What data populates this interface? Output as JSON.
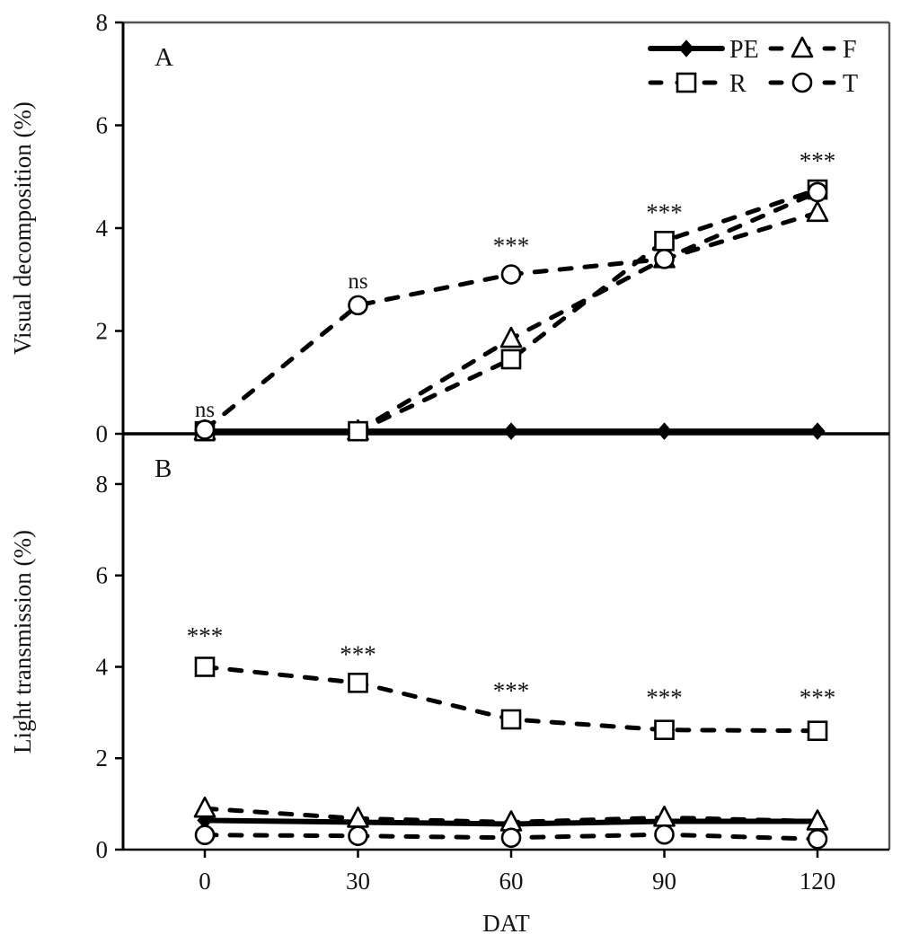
{
  "figure_title": "",
  "xlabel": "DAT",
  "colors": {
    "line": "#000000",
    "frame": "#555555",
    "text": "#141414",
    "marker_fill": "#ffffff"
  },
  "legend": {
    "order": [
      "PE",
      "F",
      "R",
      "T"
    ],
    "labels": {
      "PE": "PE",
      "F": "F",
      "R": "R",
      "T": "T"
    }
  },
  "chart_data": [
    {
      "type": "line",
      "panel": "A",
      "panel_label": "A",
      "title": "",
      "xlabel": "",
      "ylabel": "Visual decomposition (%)",
      "x": [
        0,
        30,
        60,
        90,
        120
      ],
      "x_tick_labels": [
        "0",
        "30",
        "60",
        "90",
        "120"
      ],
      "xlim": [
        0,
        120
      ],
      "ylim": [
        0,
        8
      ],
      "yticks": [
        0,
        2,
        4,
        6,
        8
      ],
      "grid": false,
      "legend_position": "top-right-inside",
      "series": [
        {
          "name": "PE",
          "marker": "diamond-filled",
          "line": "solid",
          "values": [
            0.05,
            0.05,
            0.05,
            0.05,
            0.05
          ]
        },
        {
          "name": "F",
          "marker": "triangle-open",
          "line": "dashed",
          "values": [
            0.05,
            0.05,
            1.85,
            3.4,
            4.3
          ]
        },
        {
          "name": "R",
          "marker": "square-open",
          "line": "dashed",
          "values": [
            0.05,
            0.05,
            1.45,
            3.75,
            4.75
          ]
        },
        {
          "name": "T",
          "marker": "circle-open",
          "line": "dashed",
          "values": [
            0.08,
            2.5,
            3.1,
            3.4,
            4.7
          ]
        }
      ],
      "annotations": [
        {
          "x": 0,
          "y": 0.33,
          "text": "ns"
        },
        {
          "x": 30,
          "y": 2.83,
          "text": "ns"
        },
        {
          "x": 60,
          "y": 3.5,
          "text": "***"
        },
        {
          "x": 90,
          "y": 4.15,
          "text": "***"
        },
        {
          "x": 120,
          "y": 5.15,
          "text": "***"
        }
      ]
    },
    {
      "type": "line",
      "panel": "B",
      "panel_label": "B",
      "title": "",
      "xlabel": "DAT",
      "ylabel": "Light transmission (%)",
      "x": [
        0,
        30,
        60,
        90,
        120
      ],
      "x_tick_labels": [
        "0",
        "30",
        "60",
        "90",
        "120"
      ],
      "xlim": [
        0,
        120
      ],
      "ylim": [
        0,
        9.1
      ],
      "yticks": [
        0,
        2,
        4,
        6,
        8
      ],
      "grid": false,
      "legend_position": "none",
      "series": [
        {
          "name": "PE",
          "marker": "diamond-filled",
          "line": "solid",
          "values": [
            0.64,
            0.6,
            0.56,
            0.62,
            0.62
          ]
        },
        {
          "name": "F",
          "marker": "triangle-open",
          "line": "dashed",
          "values": [
            0.9,
            0.68,
            0.6,
            0.7,
            0.62
          ]
        },
        {
          "name": "R",
          "marker": "square-open",
          "line": "dashed",
          "values": [
            4.0,
            3.65,
            2.85,
            2.62,
            2.6
          ]
        },
        {
          "name": "T",
          "marker": "circle-open",
          "line": "dashed",
          "values": [
            0.32,
            0.3,
            0.26,
            0.33,
            0.23
          ]
        }
      ],
      "annotations": [
        {
          "x": 0,
          "y": 4.5,
          "text": "***"
        },
        {
          "x": 30,
          "y": 4.1,
          "text": "***"
        },
        {
          "x": 60,
          "y": 3.3,
          "text": "***"
        },
        {
          "x": 90,
          "y": 3.15,
          "text": "***"
        },
        {
          "x": 120,
          "y": 3.15,
          "text": "***"
        }
      ]
    }
  ]
}
